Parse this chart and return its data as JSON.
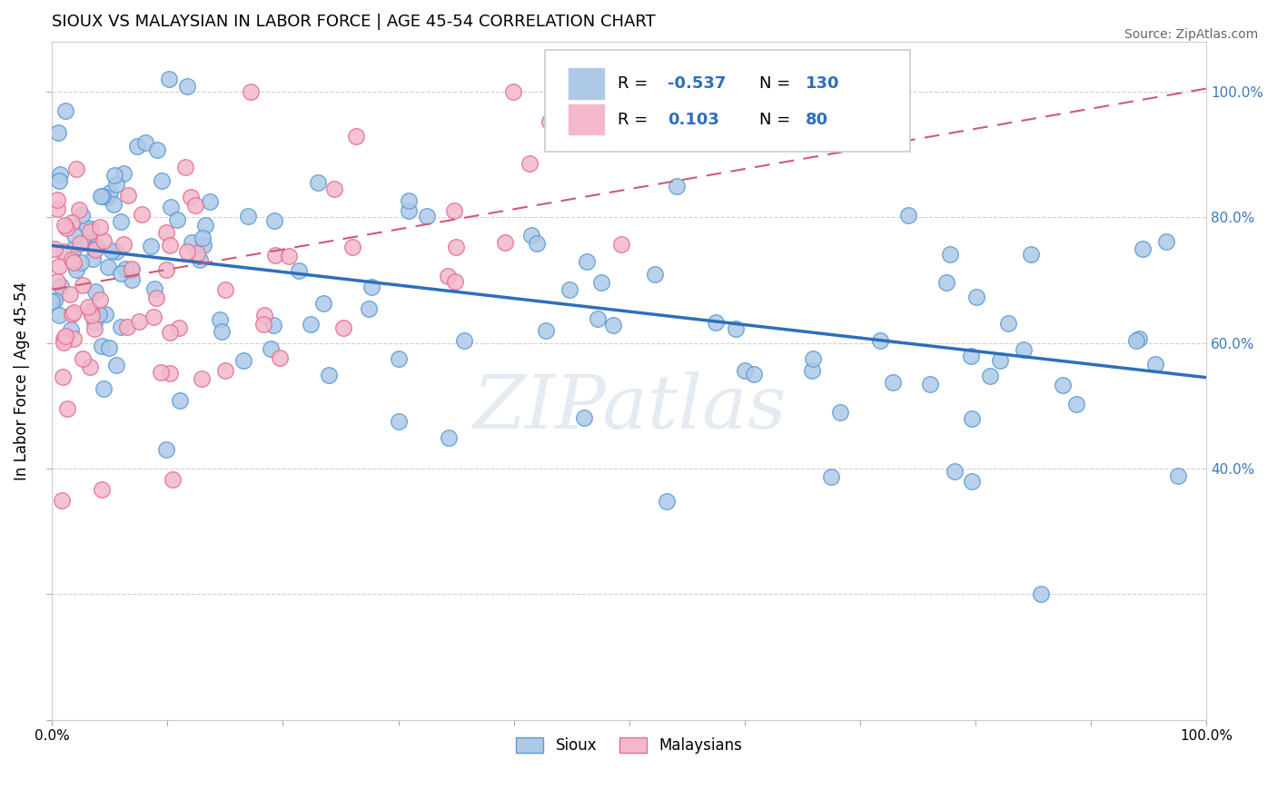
{
  "title": "SIOUX VS MALAYSIAN IN LABOR FORCE | AGE 45-54 CORRELATION CHART",
  "source": "Source: ZipAtlas.com",
  "ylabel": "In Labor Force | Age 45-54",
  "xlim": [
    0.0,
    1.0
  ],
  "ylim": [
    0.0,
    1.08
  ],
  "legend_R1": "-0.537",
  "legend_N1": "130",
  "legend_R2": "0.103",
  "legend_N2": "80",
  "blue_color": "#aec9e8",
  "blue_edge_color": "#5b9bd5",
  "pink_color": "#f4b8ca",
  "pink_edge_color": "#e07090",
  "blue_line_color": "#2e6fbc",
  "pink_line_color": "#d05878",
  "watermark": "ZIPatlas",
  "blue_line_x0": 0.0,
  "blue_line_y0": 0.755,
  "blue_line_x1": 1.0,
  "blue_line_y1": 0.545,
  "pink_line_x0": 0.0,
  "pink_line_y0": 0.685,
  "pink_line_x1": 1.0,
  "pink_line_y1": 1.005
}
